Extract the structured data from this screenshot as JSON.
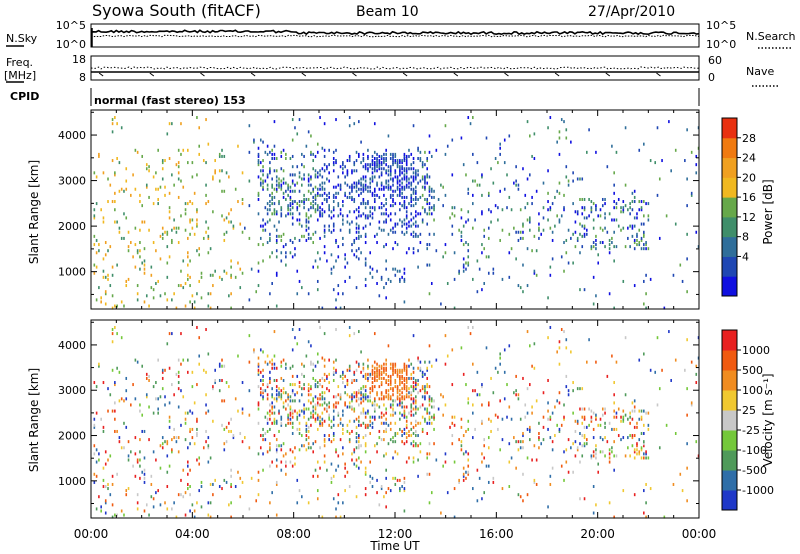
{
  "header": {
    "station": "Syowa South (fitACF)",
    "beam": "Beam 10",
    "date": "27/Apr/2010"
  },
  "panel_labels": {
    "nsky": "N.Sky",
    "nsearch": "N.Search",
    "freq_line1": "Freq.",
    "freq_line2": "[MHz]",
    "nave": "Nave",
    "cpid": "CPID",
    "mode": "normal (fast stereo) 153"
  },
  "chart_data": [
    {
      "type": "line",
      "name": "noise",
      "left_ticks": [
        "10^5",
        "10^0"
      ],
      "right_ticks": [
        "10^5",
        "10^0"
      ],
      "series": [
        {
          "name": "N.Sky",
          "style": "solid",
          "level": 0.92
        },
        {
          "name": "N.Search",
          "style": "dotted",
          "level": 0.88
        }
      ]
    },
    {
      "type": "line",
      "name": "frequency",
      "left_ticks": [
        "18",
        "8"
      ],
      "right_ticks": [
        "60",
        "0"
      ],
      "series": [
        {
          "name": "Freq.",
          "style": "solid",
          "value": 11
        },
        {
          "name": "Nave",
          "style": "dotted",
          "value": 22
        }
      ]
    },
    {
      "type": "heatmap",
      "name": "power",
      "ylabel": "Slant Range [km]",
      "ylim": [
        180,
        4550
      ],
      "yticks": [
        "1000",
        "2000",
        "3000",
        "4000"
      ],
      "colorbar": {
        "label": "Power [dB]",
        "ticks": [
          "28",
          "24",
          "20",
          "16",
          "12",
          "8",
          "4"
        ],
        "range": [
          0,
          32
        ],
        "colors": [
          "#1010e0",
          "#1f47b3",
          "#2f6e9a",
          "#3f8e6a",
          "#66a84a",
          "#f0b820",
          "#f0a020",
          "#f07a10",
          "#e83010"
        ]
      }
    },
    {
      "type": "heatmap",
      "name": "velocity",
      "ylabel": "Slant Range [km]",
      "ylim": [
        180,
        4550
      ],
      "yticks": [
        "1000",
        "2000",
        "3000",
        "4000"
      ],
      "colorbar": {
        "label": "Velocity [m s⁻¹]",
        "ticks": [
          "1000",
          "500",
          "100",
          "25",
          "-25",
          "-100",
          "-500",
          "-1000"
        ],
        "colors": [
          "#1f38c8",
          "#2f6ea8",
          "#4f9a5a",
          "#74c83a",
          "#c8c8c8",
          "#f0c830",
          "#f08c20",
          "#f05a10",
          "#e82020"
        ]
      }
    }
  ],
  "xaxis": {
    "label": "Time UT",
    "ticks": [
      "00:00",
      "04:00",
      "08:00",
      "12:00",
      "16:00",
      "20:00",
      "00:00"
    ],
    "range_hours": [
      0,
      24
    ]
  }
}
